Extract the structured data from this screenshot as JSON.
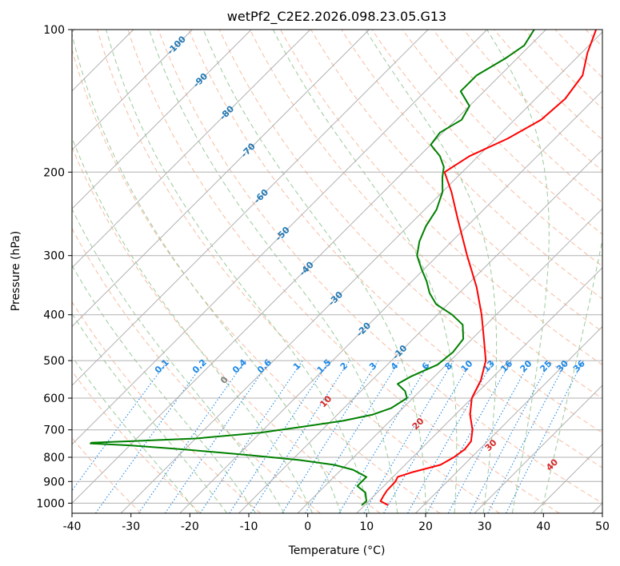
{
  "chart_data": {
    "type": "line",
    "title": "wetPf2_C2E2.2026.098.23.05.G13",
    "xlabel": "Temperature (°C)",
    "ylabel": "Pressure (hPa)",
    "xlim": [
      -40,
      50
    ],
    "ylim": [
      1050,
      100
    ],
    "y_log_scale": true,
    "grid": true,
    "x_ticks": [
      -40,
      -30,
      -20,
      -10,
      0,
      10,
      20,
      30,
      40,
      50
    ],
    "y_ticks": [
      100,
      200,
      300,
      400,
      500,
      600,
      700,
      800,
      900,
      1000
    ],
    "skew_degrees": 45,
    "series": [
      {
        "color": "#ff0000",
        "points": [
          {
            "p": 1010,
            "t": 14.0
          },
          {
            "p": 990,
            "t": 12.0
          },
          {
            "p": 965,
            "t": 11.6
          },
          {
            "p": 940,
            "t": 11.3
          },
          {
            "p": 900,
            "t": 11.2
          },
          {
            "p": 880,
            "t": 10.8
          },
          {
            "p": 860,
            "t": 12.5
          },
          {
            "p": 830,
            "t": 16.0
          },
          {
            "p": 800,
            "t": 17.0
          },
          {
            "p": 770,
            "t": 17.5
          },
          {
            "p": 740,
            "t": 17.2
          },
          {
            "p": 700,
            "t": 15.5
          },
          {
            "p": 650,
            "t": 12.5
          },
          {
            "p": 600,
            "t": 10.0
          },
          {
            "p": 550,
            "t": 8.5
          },
          {
            "p": 500,
            "t": 6.0
          },
          {
            "p": 450,
            "t": 2.0
          },
          {
            "p": 400,
            "t": -2.5
          },
          {
            "p": 350,
            "t": -8.0
          },
          {
            "p": 300,
            "t": -15.0
          },
          {
            "p": 250,
            "t": -23.0
          },
          {
            "p": 220,
            "t": -28.5
          },
          {
            "p": 200,
            "t": -33.0
          },
          {
            "p": 185,
            "t": -31.5
          },
          {
            "p": 170,
            "t": -28.0
          },
          {
            "p": 155,
            "t": -25.5
          },
          {
            "p": 140,
            "t": -25.0
          },
          {
            "p": 125,
            "t": -26.0
          },
          {
            "p": 112,
            "t": -29.0
          },
          {
            "p": 100,
            "t": -31.5
          }
        ]
      },
      {
        "color": "#008000",
        "points": [
          {
            "p": 1010,
            "t": 9.5
          },
          {
            "p": 990,
            "t": 9.6
          },
          {
            "p": 950,
            "t": 8.0
          },
          {
            "p": 920,
            "t": 5.5
          },
          {
            "p": 880,
            "t": 5.5
          },
          {
            "p": 850,
            "t": 2.0
          },
          {
            "p": 830,
            "t": -2.0
          },
          {
            "p": 810,
            "t": -9.0
          },
          {
            "p": 790,
            "t": -19.0
          },
          {
            "p": 770,
            "t": -30.0
          },
          {
            "p": 755,
            "t": -40.0
          },
          {
            "p": 748,
            "t": -47.0
          },
          {
            "p": 745,
            "t": -47.0
          },
          {
            "p": 740,
            "t": -41.0
          },
          {
            "p": 730,
            "t": -30.0
          },
          {
            "p": 710,
            "t": -20.0
          },
          {
            "p": 690,
            "t": -14.0
          },
          {
            "p": 670,
            "t": -8.0
          },
          {
            "p": 650,
            "t": -4.0
          },
          {
            "p": 630,
            "t": -2.0
          },
          {
            "p": 600,
            "t": -1.0
          },
          {
            "p": 580,
            "t": -2.5
          },
          {
            "p": 560,
            "t": -5.0
          },
          {
            "p": 540,
            "t": -4.0
          },
          {
            "p": 510,
            "t": -1.5
          },
          {
            "p": 480,
            "t": -1.0
          },
          {
            "p": 450,
            "t": -1.5
          },
          {
            "p": 420,
            "t": -4.0
          },
          {
            "p": 400,
            "t": -7.5
          },
          {
            "p": 380,
            "t": -12.0
          },
          {
            "p": 360,
            "t": -15.0
          },
          {
            "p": 340,
            "t": -17.5
          },
          {
            "p": 320,
            "t": -20.5
          },
          {
            "p": 300,
            "t": -23.5
          },
          {
            "p": 280,
            "t": -25.5
          },
          {
            "p": 260,
            "t": -27.0
          },
          {
            "p": 240,
            "t": -28.0
          },
          {
            "p": 220,
            "t": -30.0
          },
          {
            "p": 205,
            "t": -32.5
          },
          {
            "p": 195,
            "t": -34.0
          },
          {
            "p": 185,
            "t": -36.5
          },
          {
            "p": 175,
            "t": -40.0
          },
          {
            "p": 165,
            "t": -40.5
          },
          {
            "p": 155,
            "t": -39.0
          },
          {
            "p": 145,
            "t": -40.0
          },
          {
            "p": 135,
            "t": -44.0
          },
          {
            "p": 125,
            "t": -44.0
          },
          {
            "p": 115,
            "t": -42.0
          },
          {
            "p": 108,
            "t": -41.0
          },
          {
            "p": 100,
            "t": -42.0
          }
        ]
      }
    ],
    "isotherm_labels": [
      -100,
      -90,
      -80,
      -70,
      -60,
      -50,
      -40,
      -30,
      -20,
      -10
    ],
    "mixing_ratio_labels": [
      "0.1",
      "0.2",
      "0.4",
      "0.6",
      "1",
      "1.5",
      "2",
      "3",
      "4",
      "6",
      "8",
      "10",
      "13",
      "16",
      "20",
      "25",
      "30",
      "36"
    ],
    "moist_adiabat_labels": [
      "0",
      "10",
      "20",
      "30",
      "40"
    ],
    "colors": {
      "temperature": "#ff0000",
      "dewpoint": "#008000",
      "dry_adiabat": "#f4a582",
      "moist_adiabat": "#90c490",
      "mixing_ratio": "#1e88e5",
      "isotherm_label": "#1f77b4",
      "moist_label": "#d62728",
      "grid": "#b0b0b0",
      "zero_label": "#808080"
    }
  }
}
